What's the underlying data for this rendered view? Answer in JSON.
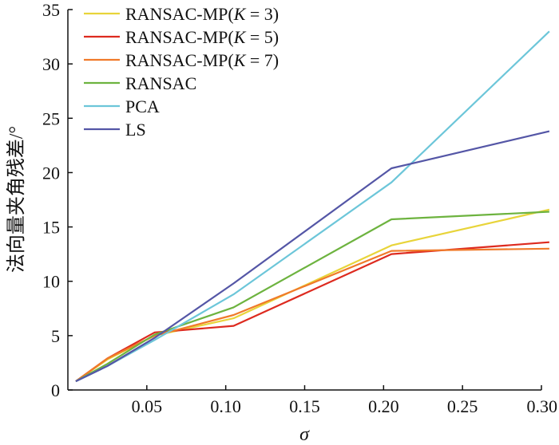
{
  "chart_data": {
    "type": "line",
    "xlabel": "σ",
    "ylabel": "法向量夹角残差/°",
    "xlim": [
      0.0,
      0.3
    ],
    "ylim": [
      0,
      35
    ],
    "xticks": [
      0.05,
      0.1,
      0.15,
      0.2,
      0.25,
      0.3
    ],
    "xtick_labels": [
      "0.05",
      "0.10",
      "0.15",
      "0.20",
      "0.25",
      "0.30"
    ],
    "yticks": [
      0,
      5,
      10,
      15,
      20,
      25,
      30,
      35
    ],
    "ytick_labels": [
      "0",
      "5",
      "10",
      "15",
      "20",
      "25",
      "30",
      "35"
    ],
    "grid": false,
    "legend_position": "top-left",
    "x": [
      0.005,
      0.025,
      0.055,
      0.105,
      0.205,
      0.305
    ],
    "series": [
      {
        "name": "RANSAC-MP(K = 3)",
        "color": "#e8d43a",
        "values": [
          0.8,
          2.8,
          5.0,
          6.6,
          13.3,
          16.6
        ]
      },
      {
        "name": "RANSAC-MP(K = 5)",
        "color": "#dd2a1f",
        "values": [
          0.8,
          2.9,
          5.3,
          5.9,
          12.5,
          13.6
        ]
      },
      {
        "name": "RANSAC-MP(K = 7)",
        "color": "#f07a2a",
        "values": [
          0.8,
          2.9,
          5.0,
          6.9,
          12.8,
          13.0
        ]
      },
      {
        "name": "RANSAC",
        "color": "#6db33f",
        "values": [
          0.8,
          2.4,
          5.1,
          7.6,
          15.7,
          16.4
        ]
      },
      {
        "name": "PCA",
        "color": "#6cc6d9",
        "values": [
          0.8,
          2.2,
          4.6,
          8.8,
          19.1,
          33.0
        ]
      },
      {
        "name": "LS",
        "color": "#5456a6",
        "values": [
          0.8,
          2.2,
          4.8,
          9.8,
          20.4,
          23.8
        ]
      }
    ]
  }
}
